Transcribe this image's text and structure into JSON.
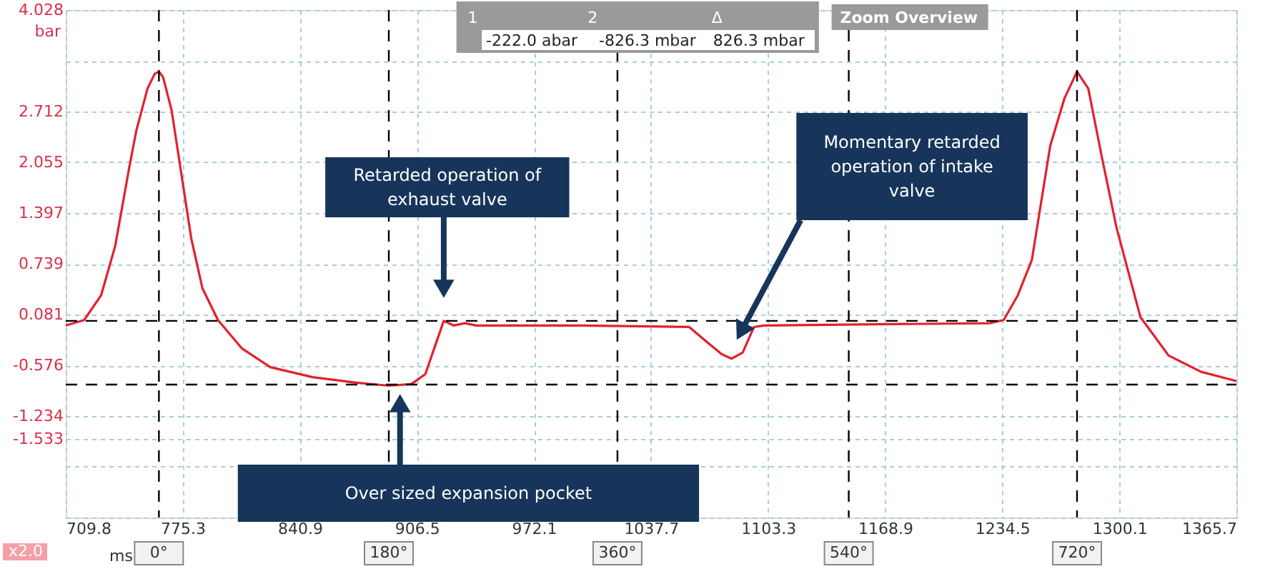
{
  "chart_data": {
    "type": "line",
    "xlabel": "ms",
    "ylabel": "bar",
    "xlim": [
      709.8,
      1365.7
    ],
    "xticks": [
      709.8,
      775.3,
      840.9,
      906.5,
      972.1,
      1037.7,
      1103.3,
      1168.9,
      1234.5,
      1300.1,
      1365.7
    ],
    "ylim": [
      -2.549,
      4.028
    ],
    "yticks": [
      4.028,
      {
        "value": 3.37,
        "label": null
      },
      2.712,
      2.055,
      1.397,
      0.739,
      0.081,
      -0.576,
      -1.234,
      -1.533,
      {
        "value": -1.891,
        "label": null
      },
      {
        "value": -2.549,
        "label": null
      }
    ],
    "grid": true,
    "line_style": "solid",
    "marker": "none",
    "x": [
      709.8,
      720.1,
      729.6,
      737.5,
      745.4,
      749.3,
      755.6,
      759.6,
      762.0,
      764.3,
      769.1,
      774.6,
      780.1,
      786.4,
      795.1,
      808.6,
      824.4,
      848.1,
      871.8,
      890.8,
      903.4,
      911.3,
      916.8,
      921.6,
      927.1,
      933.4,
      939.8,
      998.2,
      1059.1,
      1069.3,
      1077.2,
      1082.8,
      1089.1,
      1095.4,
      1100.9,
      1227.4,
      1235.3,
      1243.2,
      1251.1,
      1261.4,
      1269.3,
      1276.4,
      1282.7,
      1290.6,
      1298.5,
      1311.9,
      1327.7,
      1345.9,
      1365.7
    ],
    "series": [
      {
        "color": "#e3202e",
        "values": [
          -0.06,
          0.01,
          0.33,
          0.97,
          1.99,
          2.46,
          3.01,
          3.2,
          3.23,
          3.16,
          2.73,
          1.9,
          1.07,
          0.42,
          0.01,
          -0.36,
          -0.6,
          -0.73,
          -0.8,
          -0.84,
          -0.82,
          -0.69,
          -0.32,
          0.0,
          -0.06,
          -0.03,
          -0.06,
          -0.06,
          -0.08,
          -0.28,
          -0.43,
          -0.49,
          -0.41,
          -0.08,
          -0.06,
          -0.03,
          0.01,
          0.33,
          0.79,
          2.27,
          2.88,
          3.23,
          3.01,
          2.09,
          1.21,
          0.05,
          -0.45,
          -0.66,
          -0.78
        ]
      }
    ],
    "ref_lines": [
      {
        "axis": "y",
        "value": -0.0002,
        "color": "#000000",
        "line_style": "dashed"
      },
      {
        "axis": "y",
        "value": -0.8263,
        "color": "#000000",
        "line_style": "dashed"
      },
      {
        "axis": "x",
        "value": 762.0,
        "color": "#000000",
        "line_style": "dashed"
      },
      {
        "axis": "x",
        "value": 890.8,
        "color": "#000000",
        "line_style": "dashed"
      },
      {
        "axis": "x",
        "value": 1018.9,
        "color": "#000000",
        "line_style": "dashed"
      },
      {
        "axis": "x",
        "value": 1148.5,
        "color": "#000000",
        "line_style": "dashed"
      },
      {
        "axis": "x",
        "value": 1276.4,
        "color": "#000000",
        "line_style": "dashed"
      }
    ],
    "annotations": [
      "1",
      "2",
      "Δ",
      "-222.0 abar",
      "-826.3 mbar",
      "826.3 mbar",
      "Zoom Overview",
      "x2.0",
      "0°",
      "180°",
      "360°",
      "540°",
      "720°",
      "Retarded operation of exhaust valve",
      "Momentary retarded operation of intake valve",
      "Over sized expansion pocket"
    ]
  }
}
